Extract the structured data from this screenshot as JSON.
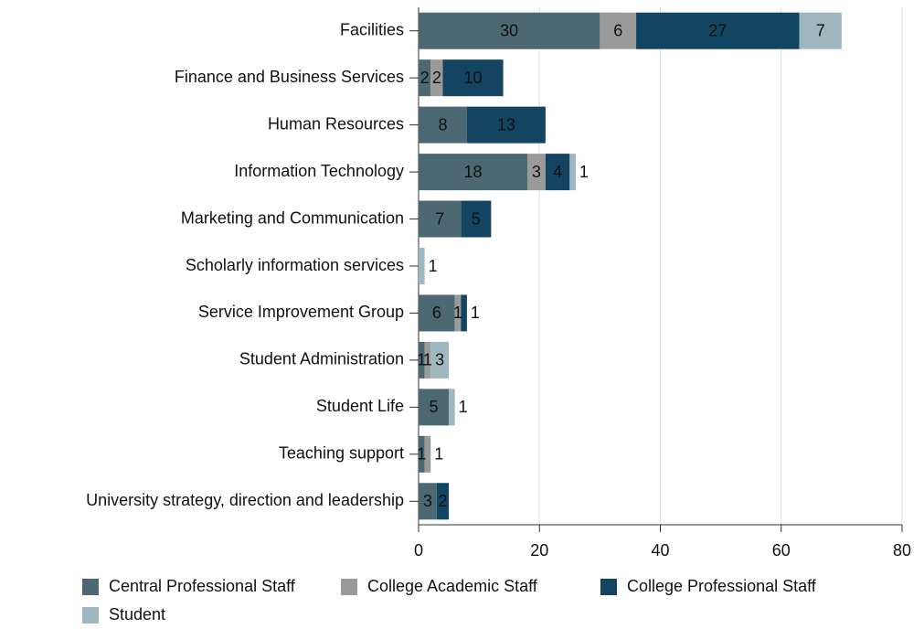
{
  "chart_data": {
    "type": "bar",
    "orientation": "horizontal",
    "stacked": true,
    "categories": [
      "Facilities",
      "Finance and Business Services",
      "Human Resources",
      "Information Technology",
      "Marketing and Communication",
      "Scholarly information services",
      "Service Improvement Group",
      "Student Administration",
      "Student Life",
      "Teaching support",
      "University strategy, direction and leadership"
    ],
    "series": [
      {
        "name": "Central Professional Staff",
        "color": "#4b6873",
        "values": [
          30,
          2,
          8,
          18,
          7,
          null,
          6,
          1,
          5,
          1,
          3
        ]
      },
      {
        "name": "College Academic Staff",
        "color": "#9a9a9a",
        "values": [
          6,
          2,
          null,
          3,
          null,
          null,
          1,
          1,
          null,
          1,
          null
        ]
      },
      {
        "name": "College Professional Staff",
        "color": "#134563",
        "values": [
          27,
          10,
          13,
          4,
          5,
          null,
          1,
          null,
          null,
          null,
          2
        ]
      },
      {
        "name": "Student",
        "color": "#9fb7bf",
        "values": [
          7,
          null,
          null,
          1,
          null,
          1,
          null,
          3,
          1,
          null,
          null
        ]
      }
    ],
    "xlim": [
      0,
      80
    ],
    "xticks": [
      0,
      20,
      40,
      60,
      80
    ],
    "grid": true,
    "legend": "bottom"
  }
}
